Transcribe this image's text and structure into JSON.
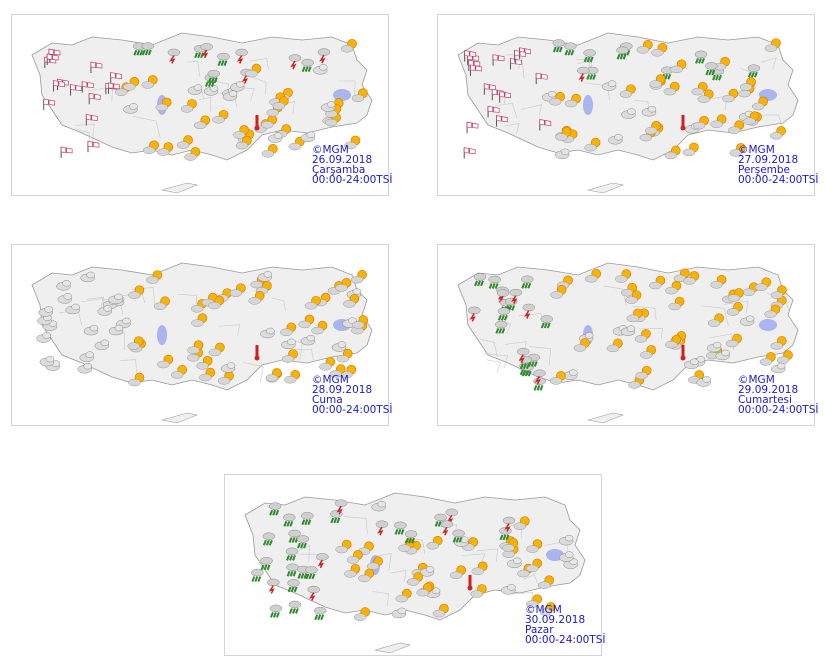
{
  "maps": [
    {
      "copyright": "©MGM",
      "date": "26.09.2018",
      "day": "Çarşamba",
      "time_range": "00:00-24:00TSİ",
      "west_icons": "wind",
      "north_icons": "rain"
    },
    {
      "copyright": "©MGM",
      "date": "27.09.2018",
      "day": "Perşembe",
      "time_range": "00:00-24:00TSİ",
      "west_icons": "wind",
      "north_icons": "rain"
    },
    {
      "copyright": "©MGM",
      "date": "28.09.2018",
      "day": "Cuma",
      "time_range": "00:00-24:00TSİ",
      "west_icons": "cloud",
      "north_icons": "sun-cloud"
    },
    {
      "copyright": "©MGM",
      "date": "29.09.2018",
      "day": "Cumartesi",
      "time_range": "00:00-24:00TSİ",
      "west_icons": "rain",
      "north_icons": "sun-cloud"
    },
    {
      "copyright": "©MGM",
      "date": "30.09.2018",
      "day": "Pazar",
      "time_range": "00:00-24:00TSİ",
      "west_icons": "rain",
      "north_icons": "rain"
    }
  ],
  "colors": {
    "caption": "#1a1acc",
    "land": "#efefef",
    "border": "#999999",
    "lake": "#aab4ee",
    "sun": "#f6b400",
    "rain": "#2e8b2e",
    "storm": "#d22020"
  }
}
